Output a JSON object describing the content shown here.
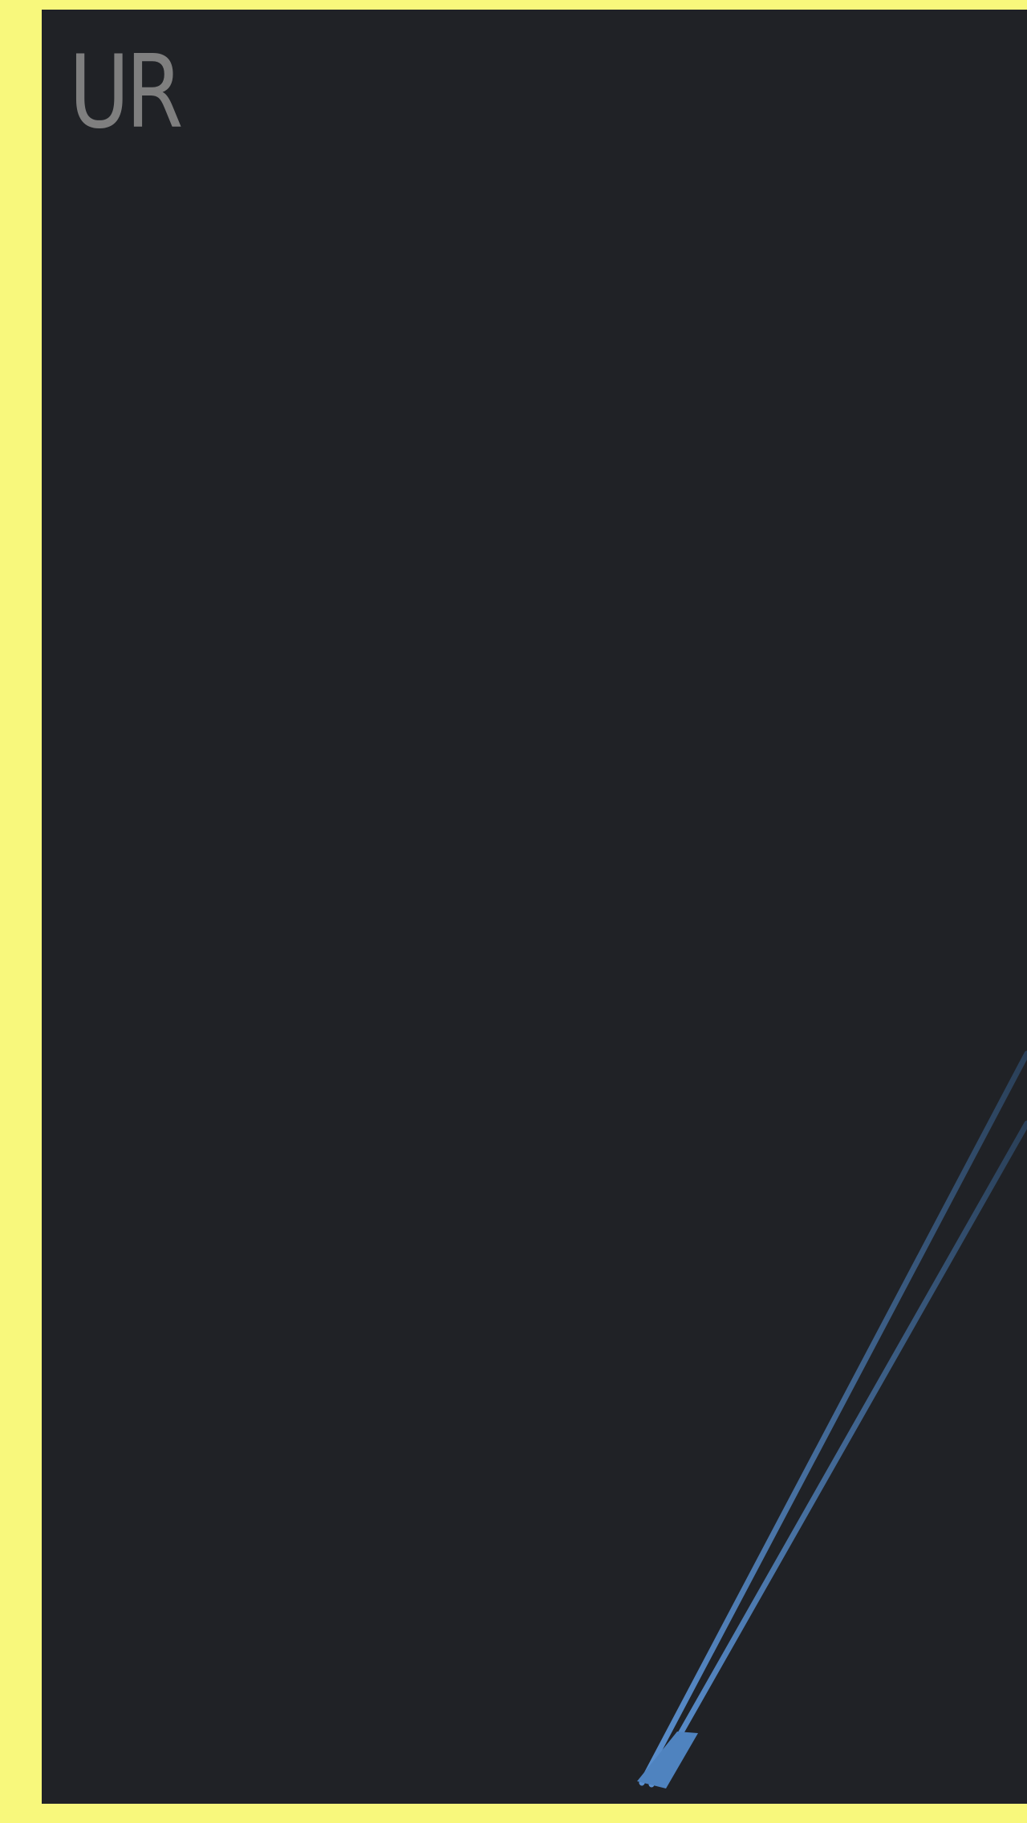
{
  "panel": {
    "label": "UR"
  },
  "colors": {
    "frame": "#f8f87c",
    "panel": "#202226",
    "label": "#7f7f7f",
    "stroke": "#4f83bf"
  },
  "graphics": {
    "strokes": [
      "blue-stroke"
    ]
  }
}
